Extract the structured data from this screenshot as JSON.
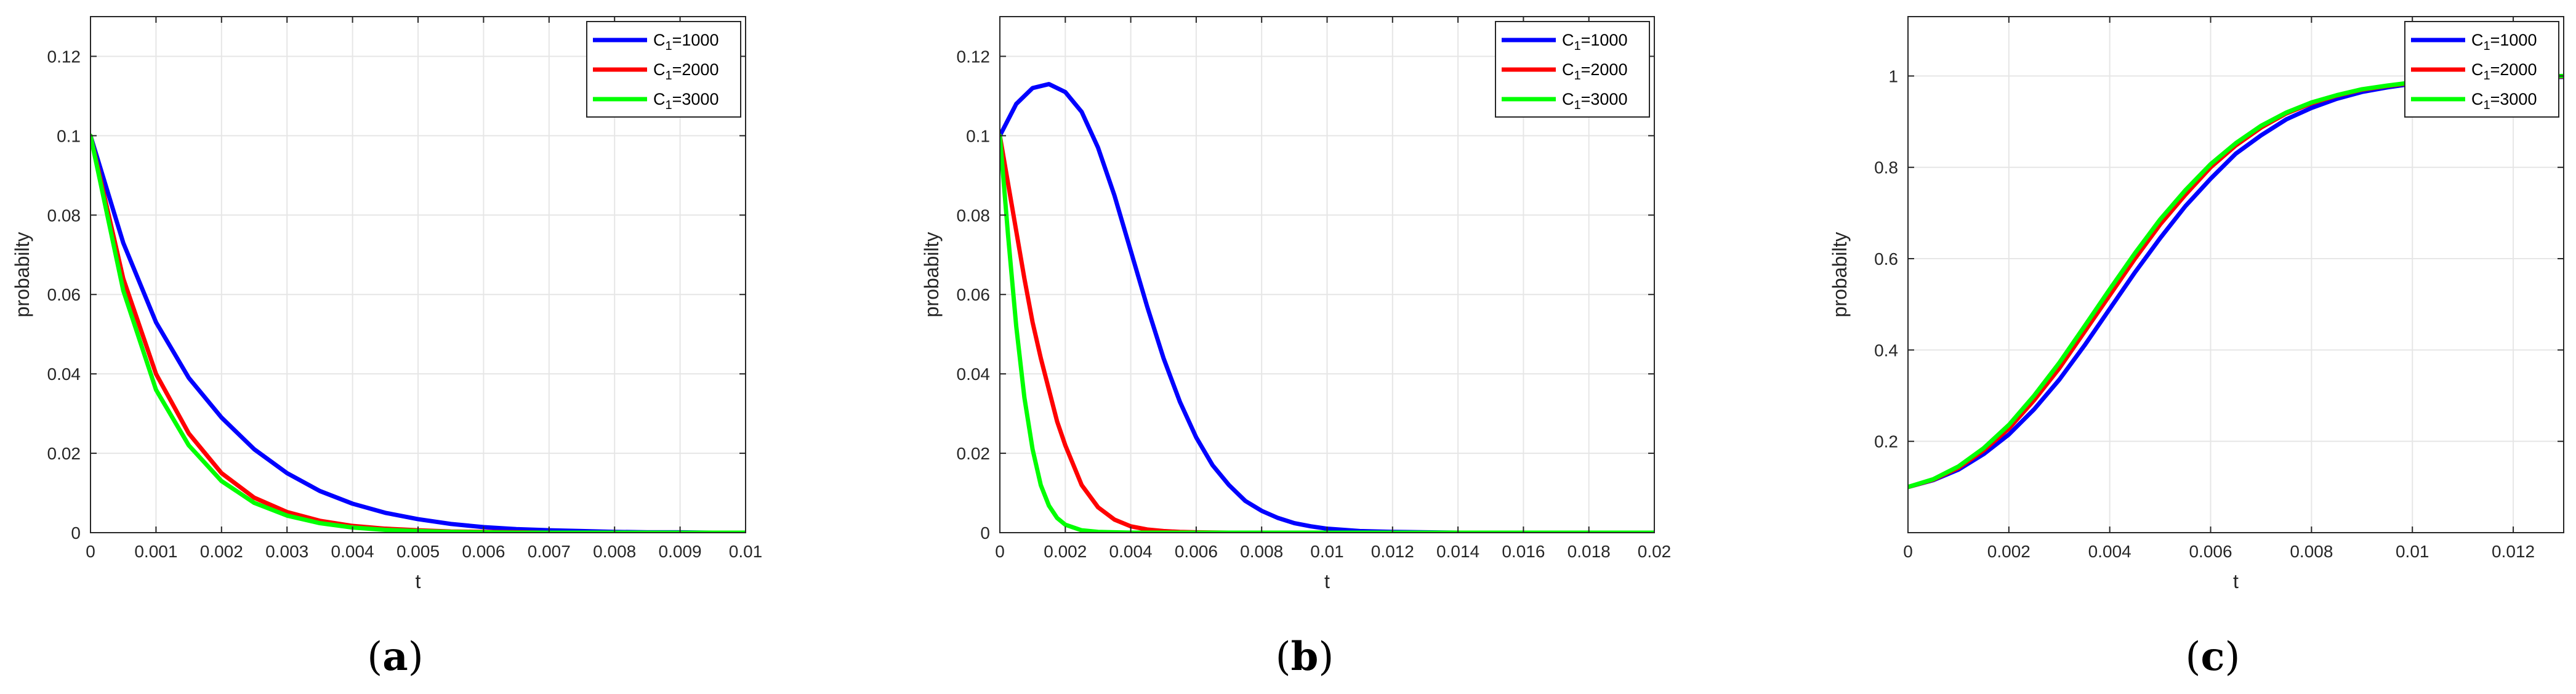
{
  "chart_data": [
    {
      "type": "line",
      "caption": {
        "open": "(",
        "letter": "a",
        "close": ")"
      },
      "xlabel": "t",
      "ylabel": "probabilty",
      "xlim": [
        0,
        0.01
      ],
      "ylim": [
        0,
        0.13
      ],
      "xticks": [
        0,
        0.001,
        0.002,
        0.003,
        0.004,
        0.005,
        0.006,
        0.007,
        0.008,
        0.009,
        0.01
      ],
      "xtick_labels": [
        "0",
        "0.001",
        "0.002",
        "0.003",
        "0.004",
        "0.005",
        "0.006",
        "0.007",
        "0.008",
        "0.009",
        "0.01"
      ],
      "yticks": [
        0,
        0.02,
        0.04,
        0.06,
        0.08,
        0.1,
        0.12
      ],
      "ytick_labels": [
        "0",
        "0.02",
        "0.04",
        "0.06",
        "0.08",
        "0.1",
        "0.12"
      ],
      "grid": true,
      "legend_position": "top-right",
      "series": [
        {
          "name": {
            "base": "C",
            "sub": "1",
            "rest": "=1000"
          },
          "color": "#0000ff",
          "x": [
            0,
            0.0005,
            0.001,
            0.0015,
            0.002,
            0.0025,
            0.003,
            0.0035,
            0.004,
            0.0045,
            0.005,
            0.0055,
            0.006,
            0.0065,
            0.007,
            0.0075,
            0.008,
            0.0085,
            0.009,
            0.0095,
            0.01
          ],
          "y": [
            0.1,
            0.073,
            0.053,
            0.039,
            0.029,
            0.021,
            0.015,
            0.0105,
            0.0073,
            0.005,
            0.0034,
            0.0022,
            0.0014,
            0.0009,
            0.0006,
            0.0004,
            0.0002,
            0.0001,
            0.0001,
            0,
            0
          ]
        },
        {
          "name": {
            "base": "C",
            "sub": "1",
            "rest": "=2000"
          },
          "color": "#ff0000",
          "x": [
            0,
            0.0005,
            0.001,
            0.0015,
            0.002,
            0.0025,
            0.003,
            0.0035,
            0.004,
            0.0045,
            0.005,
            0.0055,
            0.006,
            0.0065,
            0.007,
            0.0075,
            0.008,
            0.0085,
            0.009,
            0.0095,
            0.01
          ],
          "y": [
            0.1,
            0.064,
            0.04,
            0.025,
            0.015,
            0.0088,
            0.0052,
            0.003,
            0.0017,
            0.001,
            0.0006,
            0.0003,
            0.0002,
            0.0001,
            0,
            0,
            0,
            0,
            0,
            0,
            0
          ]
        },
        {
          "name": {
            "base": "C",
            "sub": "1",
            "rest": "=3000"
          },
          "color": "#00ff00",
          "x": [
            0,
            0.0005,
            0.001,
            0.0015,
            0.002,
            0.0025,
            0.003,
            0.0035,
            0.004,
            0.0045,
            0.005,
            0.0055,
            0.006,
            0.0065,
            0.007,
            0.0075,
            0.008,
            0.0085,
            0.009,
            0.0095,
            0.01
          ],
          "y": [
            0.1,
            0.061,
            0.036,
            0.022,
            0.013,
            0.0075,
            0.0043,
            0.0024,
            0.0013,
            0.0007,
            0.0004,
            0.0002,
            0.0001,
            0,
            0,
            0,
            0,
            0,
            0,
            0,
            0
          ]
        }
      ]
    },
    {
      "type": "line",
      "caption": {
        "open": "(",
        "letter": "b",
        "close": ")"
      },
      "xlabel": "t",
      "ylabel": "probabilty",
      "xlim": [
        0,
        0.02
      ],
      "ylim": [
        0,
        0.13
      ],
      "xticks": [
        0,
        0.002,
        0.004,
        0.006,
        0.008,
        0.01,
        0.012,
        0.014,
        0.016,
        0.018,
        0.02
      ],
      "xtick_labels": [
        "0",
        "0.002",
        "0.004",
        "0.006",
        "0.008",
        "0.01",
        "0.012",
        "0.014",
        "0.016",
        "0.018",
        "0.02"
      ],
      "yticks": [
        0,
        0.02,
        0.04,
        0.06,
        0.08,
        0.1,
        0.12
      ],
      "ytick_labels": [
        "0",
        "0.02",
        "0.04",
        "0.06",
        "0.08",
        "0.1",
        "0.12"
      ],
      "grid": true,
      "legend_position": "top-right",
      "series": [
        {
          "name": {
            "base": "C",
            "sub": "1",
            "rest": "=1000"
          },
          "color": "#0000ff",
          "x": [
            0,
            0.0005,
            0.001,
            0.0015,
            0.002,
            0.0025,
            0.003,
            0.0035,
            0.004,
            0.0045,
            0.005,
            0.0055,
            0.006,
            0.0065,
            0.007,
            0.0075,
            0.008,
            0.0085,
            0.009,
            0.0095,
            0.01,
            0.011,
            0.012,
            0.013,
            0.014,
            0.016,
            0.018,
            0.02
          ],
          "y": [
            0.1,
            0.108,
            0.112,
            0.113,
            0.111,
            0.106,
            0.097,
            0.085,
            0.071,
            0.057,
            0.044,
            0.033,
            0.024,
            0.017,
            0.012,
            0.008,
            0.0055,
            0.0037,
            0.0024,
            0.0016,
            0.001,
            0.0004,
            0.0002,
            0.0001,
            0,
            0,
            0,
            0
          ]
        },
        {
          "name": {
            "base": "C",
            "sub": "1",
            "rest": "=2000"
          },
          "color": "#ff0000",
          "x": [
            0,
            0.00025,
            0.0005,
            0.00075,
            0.001,
            0.00125,
            0.0015,
            0.00175,
            0.002,
            0.0025,
            0.003,
            0.0035,
            0.004,
            0.0045,
            0.005,
            0.0055,
            0.006,
            0.007,
            0.008,
            0.01,
            0.02
          ],
          "y": [
            0.1,
            0.088,
            0.076,
            0.064,
            0.053,
            0.044,
            0.036,
            0.028,
            0.022,
            0.012,
            0.0064,
            0.0033,
            0.0016,
            0.0008,
            0.0004,
            0.0002,
            0.0001,
            0,
            0,
            0,
            0
          ]
        },
        {
          "name": {
            "base": "C",
            "sub": "1",
            "rest": "=3000"
          },
          "color": "#00ff00",
          "x": [
            0,
            0.00025,
            0.0005,
            0.00075,
            0.001,
            0.00125,
            0.0015,
            0.00175,
            0.002,
            0.0025,
            0.003,
            0.0035,
            0.004,
            0.005,
            0.006,
            0.008,
            0.01,
            0.02
          ],
          "y": [
            0.1,
            0.075,
            0.052,
            0.034,
            0.021,
            0.012,
            0.0068,
            0.0037,
            0.002,
            0.0006,
            0.0002,
            0.0001,
            0,
            0,
            0,
            0,
            0,
            0
          ]
        }
      ]
    },
    {
      "type": "line",
      "caption": {
        "open": "(",
        "letter": "c",
        "close": ")"
      },
      "xlabel": "t",
      "ylabel": "probabilty",
      "xlim": [
        0,
        0.013
      ],
      "ylim": [
        0,
        1.13
      ],
      "xticks": [
        0,
        0.002,
        0.004,
        0.006,
        0.008,
        0.01,
        0.012
      ],
      "xtick_labels": [
        "0",
        "0.002",
        "0.004",
        "0.006",
        "0.008",
        "0.01",
        "0.012"
      ],
      "yticks": [
        0.2,
        0.4,
        0.6,
        0.8,
        1
      ],
      "ytick_labels": [
        "0.2",
        "0.4",
        "0.6",
        "0.8",
        "1"
      ],
      "grid": true,
      "legend_position": "top-right",
      "series": [
        {
          "name": {
            "base": "C",
            "sub": "1",
            "rest": "=1000"
          },
          "color": "#0000ff",
          "x": [
            0,
            0.0005,
            0.001,
            0.0015,
            0.002,
            0.0025,
            0.003,
            0.0035,
            0.004,
            0.0045,
            0.005,
            0.0055,
            0.006,
            0.0065,
            0.007,
            0.0075,
            0.008,
            0.0085,
            0.009,
            0.0095,
            0.01,
            0.011,
            0.012,
            0.013
          ],
          "y": [
            0.1,
            0.115,
            0.138,
            0.172,
            0.215,
            0.27,
            0.335,
            0.41,
            0.49,
            0.57,
            0.645,
            0.715,
            0.775,
            0.83,
            0.87,
            0.905,
            0.93,
            0.95,
            0.965,
            0.975,
            0.983,
            0.992,
            0.996,
            0.998
          ]
        },
        {
          "name": {
            "base": "C",
            "sub": "1",
            "rest": "=2000"
          },
          "color": "#ff0000",
          "x": [
            0,
            0.0005,
            0.001,
            0.0015,
            0.002,
            0.0025,
            0.003,
            0.0035,
            0.004,
            0.0045,
            0.005,
            0.0055,
            0.006,
            0.0065,
            0.007,
            0.0075,
            0.008,
            0.0085,
            0.009,
            0.0095,
            0.01,
            0.011,
            0.012,
            0.013
          ],
          "y": [
            0.1,
            0.116,
            0.142,
            0.18,
            0.228,
            0.29,
            0.36,
            0.44,
            0.52,
            0.6,
            0.675,
            0.74,
            0.8,
            0.848,
            0.887,
            0.918,
            0.94,
            0.957,
            0.97,
            0.978,
            0.985,
            0.993,
            0.997,
            0.999
          ]
        },
        {
          "name": {
            "base": "C",
            "sub": "1",
            "rest": "=3000"
          },
          "color": "#00ff00",
          "x": [
            0,
            0.0005,
            0.001,
            0.0015,
            0.002,
            0.0025,
            0.003,
            0.0035,
            0.004,
            0.0045,
            0.005,
            0.0055,
            0.006,
            0.0065,
            0.007,
            0.0075,
            0.008,
            0.0085,
            0.009,
            0.0095,
            0.01,
            0.011,
            0.012,
            0.013
          ],
          "y": [
            0.1,
            0.117,
            0.145,
            0.185,
            0.236,
            0.3,
            0.372,
            0.452,
            0.533,
            0.612,
            0.686,
            0.75,
            0.807,
            0.853,
            0.891,
            0.92,
            0.942,
            0.958,
            0.971,
            0.979,
            0.986,
            0.994,
            0.998,
            1.0
          ]
        }
      ]
    }
  ]
}
